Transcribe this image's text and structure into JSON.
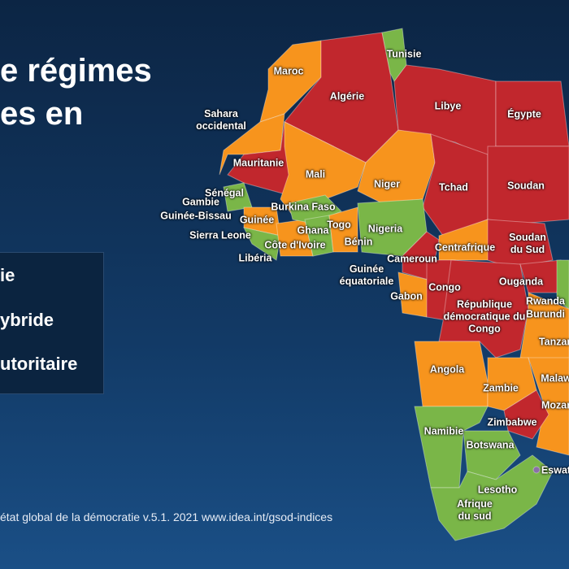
{
  "title": {
    "lines": [
      "e régimes",
      "es en"
    ]
  },
  "legend": {
    "items": [
      "ie",
      "ybride",
      "utoritaire"
    ]
  },
  "countries": [
    {
      "label": "Maroc"
    },
    {
      "label": "Tunisie"
    },
    {
      "label": "Algérie"
    },
    {
      "label": "Libye"
    },
    {
      "label": "Égypte"
    },
    {
      "label": "Sahara occidental"
    },
    {
      "label": "Mauritanie"
    },
    {
      "label": "Mali"
    },
    {
      "label": "Niger"
    },
    {
      "label": "Tchad"
    },
    {
      "label": "Soudan"
    },
    {
      "label": "Sénégal"
    },
    {
      "label": "Gambie"
    },
    {
      "label": "Guinée-Bissau"
    },
    {
      "label": "Guinée"
    },
    {
      "label": "Sierra Leone"
    },
    {
      "label": "Burkina Faso"
    },
    {
      "label": "Togo"
    },
    {
      "label": "Ghana"
    },
    {
      "label": "Côte d'Ivoire"
    },
    {
      "label": "Bénin"
    },
    {
      "label": "Nigeria"
    },
    {
      "label": "Libéria"
    },
    {
      "label": "Soudan du Sud"
    },
    {
      "label": "Centrafrique"
    },
    {
      "label": "Cameroun"
    },
    {
      "label": "Guinée équatoriale"
    },
    {
      "label": "Congo"
    },
    {
      "label": "Gabon"
    },
    {
      "label": "Ouganda"
    },
    {
      "label": "République démocratique du Congo"
    },
    {
      "label": "Rwanda"
    },
    {
      "label": "Burundi"
    },
    {
      "label": "Tanzan"
    },
    {
      "label": "Angola"
    },
    {
      "label": "Zambie"
    },
    {
      "label": "Malaw"
    },
    {
      "label": "Zimbabwe"
    },
    {
      "label": "Mozam"
    },
    {
      "label": "Namibie"
    },
    {
      "label": "Botswana"
    },
    {
      "label": "Eswat"
    },
    {
      "label": "Lesotho"
    },
    {
      "label": "Afrique du sud"
    }
  ],
  "source": "état global de la démocratie v.5.1. 2021 www.idea.int/gsod-indices"
}
